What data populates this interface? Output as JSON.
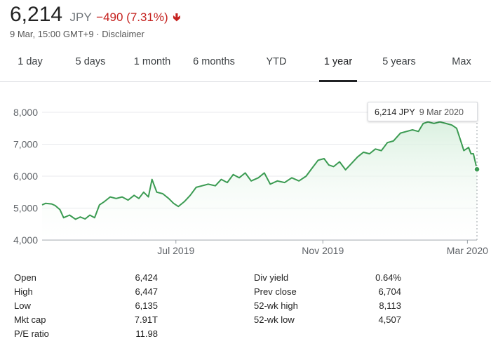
{
  "quote": {
    "price": "6,214",
    "currency": "JPY",
    "change": "−490 (7.31%)",
    "timestamp": "9 Mar, 15:00 GMT+9",
    "separator": "·",
    "disclaimer": "Disclaimer"
  },
  "range_tabs": [
    "1 day",
    "5 days",
    "1 month",
    "6 months",
    "YTD",
    "1 year",
    "5 years",
    "Max"
  ],
  "active_tab": "1 year",
  "tooltip": {
    "price": "6,214 JPY",
    "date": "9 Mar 2020"
  },
  "stats_left": [
    {
      "label": "Open",
      "value": "6,424"
    },
    {
      "label": "High",
      "value": "6,447"
    },
    {
      "label": "Low",
      "value": "6,135"
    },
    {
      "label": "Mkt cap",
      "value": "7.91T"
    },
    {
      "label": "P/E ratio",
      "value": "11.98"
    }
  ],
  "stats_right": [
    {
      "label": "Div yield",
      "value": "0.64%"
    },
    {
      "label": "Prev close",
      "value": "6,704"
    },
    {
      "label": "52-wk high",
      "value": "8,113"
    },
    {
      "label": "52-wk low",
      "value": "4,507"
    }
  ],
  "colors": {
    "line": "#3b9b52",
    "fill": "#e6f4ea",
    "down": "#c5221f",
    "grid": "#e8eaed"
  },
  "chart_data": {
    "type": "area",
    "ylim": [
      4000,
      8000
    ],
    "yticks": [
      4000,
      5000,
      6000,
      7000,
      8000
    ],
    "ytick_labels": [
      "4,000",
      "5,000",
      "6,000",
      "7,000",
      "8,000"
    ],
    "xticks": [
      {
        "date": "2019-07-01",
        "label": "Jul 2019"
      },
      {
        "date": "2019-11-01",
        "label": "Nov 2019"
      },
      {
        "date": "2020-03-01",
        "label": "Mar 2020"
      }
    ],
    "xlim": [
      "2019-03-11",
      "2020-03-09"
    ],
    "grid": true,
    "series": [
      {
        "points": [
          [
            "2019-03-11",
            5100
          ],
          [
            "2019-03-14",
            5150
          ],
          [
            "2019-03-19",
            5130
          ],
          [
            "2019-03-22",
            5080
          ],
          [
            "2019-03-26",
            4950
          ],
          [
            "2019-03-29",
            4700
          ],
          [
            "2019-04-03",
            4780
          ],
          [
            "2019-04-08",
            4650
          ],
          [
            "2019-04-12",
            4720
          ],
          [
            "2019-04-16",
            4660
          ],
          [
            "2019-04-20",
            4780
          ],
          [
            "2019-04-24",
            4700
          ],
          [
            "2019-04-28",
            5100
          ],
          [
            "2019-05-02",
            5200
          ],
          [
            "2019-05-07",
            5350
          ],
          [
            "2019-05-12",
            5300
          ],
          [
            "2019-05-17",
            5350
          ],
          [
            "2019-05-22",
            5250
          ],
          [
            "2019-05-27",
            5400
          ],
          [
            "2019-05-31",
            5300
          ],
          [
            "2019-06-04",
            5500
          ],
          [
            "2019-06-08",
            5350
          ],
          [
            "2019-06-11",
            5900
          ],
          [
            "2019-06-15",
            5500
          ],
          [
            "2019-06-20",
            5450
          ],
          [
            "2019-06-25",
            5300
          ],
          [
            "2019-06-29",
            5150
          ],
          [
            "2019-07-03",
            5050
          ],
          [
            "2019-07-08",
            5200
          ],
          [
            "2019-07-13",
            5400
          ],
          [
            "2019-07-18",
            5650
          ],
          [
            "2019-07-23",
            5700
          ],
          [
            "2019-07-28",
            5750
          ],
          [
            "2019-08-03",
            5700
          ],
          [
            "2019-08-08",
            5900
          ],
          [
            "2019-08-13",
            5800
          ],
          [
            "2019-08-18",
            6050
          ],
          [
            "2019-08-23",
            5950
          ],
          [
            "2019-08-28",
            6100
          ],
          [
            "2019-09-02",
            5850
          ],
          [
            "2019-09-08",
            5950
          ],
          [
            "2019-09-13",
            6100
          ],
          [
            "2019-09-18",
            5750
          ],
          [
            "2019-09-24",
            5850
          ],
          [
            "2019-09-30",
            5800
          ],
          [
            "2019-10-06",
            5950
          ],
          [
            "2019-10-12",
            5850
          ],
          [
            "2019-10-18",
            6000
          ],
          [
            "2019-10-23",
            6250
          ],
          [
            "2019-10-28",
            6500
          ],
          [
            "2019-11-02",
            6550
          ],
          [
            "2019-11-06",
            6350
          ],
          [
            "2019-11-10",
            6300
          ],
          [
            "2019-11-15",
            6450
          ],
          [
            "2019-11-20",
            6200
          ],
          [
            "2019-11-25",
            6400
          ],
          [
            "2019-11-30",
            6600
          ],
          [
            "2019-12-05",
            6750
          ],
          [
            "2019-12-10",
            6700
          ],
          [
            "2019-12-15",
            6850
          ],
          [
            "2019-12-20",
            6800
          ],
          [
            "2019-12-25",
            7050
          ],
          [
            "2019-12-30",
            7100
          ],
          [
            "2020-01-05",
            7350
          ],
          [
            "2020-01-10",
            7400
          ],
          [
            "2020-01-15",
            7450
          ],
          [
            "2020-01-20",
            7400
          ],
          [
            "2020-01-24",
            7650
          ],
          [
            "2020-01-28",
            7700
          ],
          [
            "2020-02-02",
            7650
          ],
          [
            "2020-02-07",
            7700
          ],
          [
            "2020-02-12",
            7650
          ],
          [
            "2020-02-17",
            7600
          ],
          [
            "2020-02-21",
            7500
          ],
          [
            "2020-02-24",
            7150
          ],
          [
            "2020-02-27",
            6800
          ],
          [
            "2020-03-02",
            6900
          ],
          [
            "2020-03-04",
            6700
          ],
          [
            "2020-03-06",
            6704
          ],
          [
            "2020-03-09",
            6214
          ]
        ]
      }
    ]
  }
}
